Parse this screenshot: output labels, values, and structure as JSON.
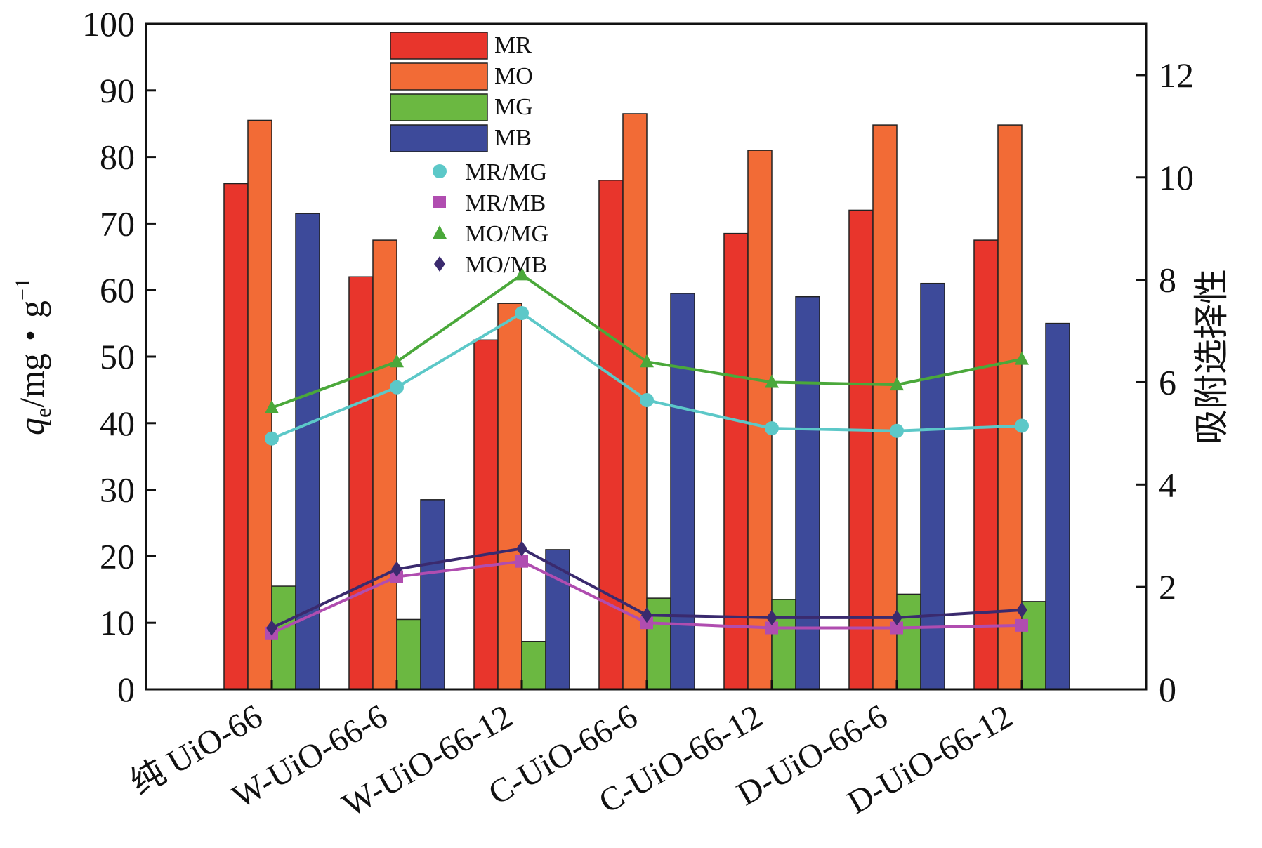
{
  "chart_data": {
    "type": "bar",
    "categories": [
      "纯 UiO-66",
      "W-UiO-66-6",
      "W-UiO-66-12",
      "C-UiO-66-6",
      "C-UiO-66-12",
      "D-UiO-66-6",
      "D-UiO-66-12"
    ],
    "series": [
      {
        "name": "MR",
        "type": "bar",
        "axis": "left",
        "color": "#e8352c",
        "values": [
          76,
          62,
          52.5,
          76.5,
          68.5,
          72,
          67.5
        ]
      },
      {
        "name": "MO",
        "type": "bar",
        "axis": "left",
        "color": "#f26b36",
        "values": [
          85.5,
          67.5,
          58,
          86.5,
          81,
          84.8,
          84.8
        ]
      },
      {
        "name": "MG",
        "type": "bar",
        "axis": "left",
        "color": "#6bb841",
        "values": [
          15.5,
          10.5,
          7.2,
          13.7,
          13.5,
          14.3,
          13.2
        ]
      },
      {
        "name": "MB",
        "type": "bar",
        "axis": "left",
        "color": "#3d4a9a",
        "values": [
          71.5,
          28.5,
          21,
          59.5,
          59,
          61,
          55
        ]
      },
      {
        "name": "MR/MG",
        "type": "line",
        "axis": "right",
        "color": "#5cc8c8",
        "marker": "circle",
        "values": [
          4.9,
          5.9,
          7.35,
          5.65,
          5.1,
          5.05,
          5.15
        ]
      },
      {
        "name": "MR/MB",
        "type": "line",
        "axis": "right",
        "color": "#b04db0",
        "marker": "square",
        "values": [
          1.1,
          2.2,
          2.5,
          1.3,
          1.2,
          1.2,
          1.25
        ]
      },
      {
        "name": "MO/MG",
        "type": "line",
        "axis": "right",
        "color": "#4aa83a",
        "marker": "triangle",
        "values": [
          5.5,
          6.4,
          8.1,
          6.4,
          6.0,
          5.95,
          6.45
        ]
      },
      {
        "name": "MO/MB",
        "type": "line",
        "axis": "right",
        "color": "#3a2a6e",
        "marker": "diamond",
        "values": [
          1.2,
          2.35,
          2.75,
          1.45,
          1.4,
          1.4,
          1.55
        ]
      }
    ],
    "ylabel_left": "qe/mg・g−1",
    "ylabel_right": "吸附选择性",
    "ylim_left": [
      0,
      100
    ],
    "ylim_right": [
      0,
      13
    ],
    "yticks_left": [
      "0",
      "10",
      "20",
      "30",
      "40",
      "50",
      "60",
      "70",
      "80",
      "90",
      "100"
    ],
    "yticks_right": [
      "0",
      "2",
      "4",
      "6",
      "8",
      "10",
      "12"
    ],
    "legend_placement": "top-center",
    "grid": false
  }
}
